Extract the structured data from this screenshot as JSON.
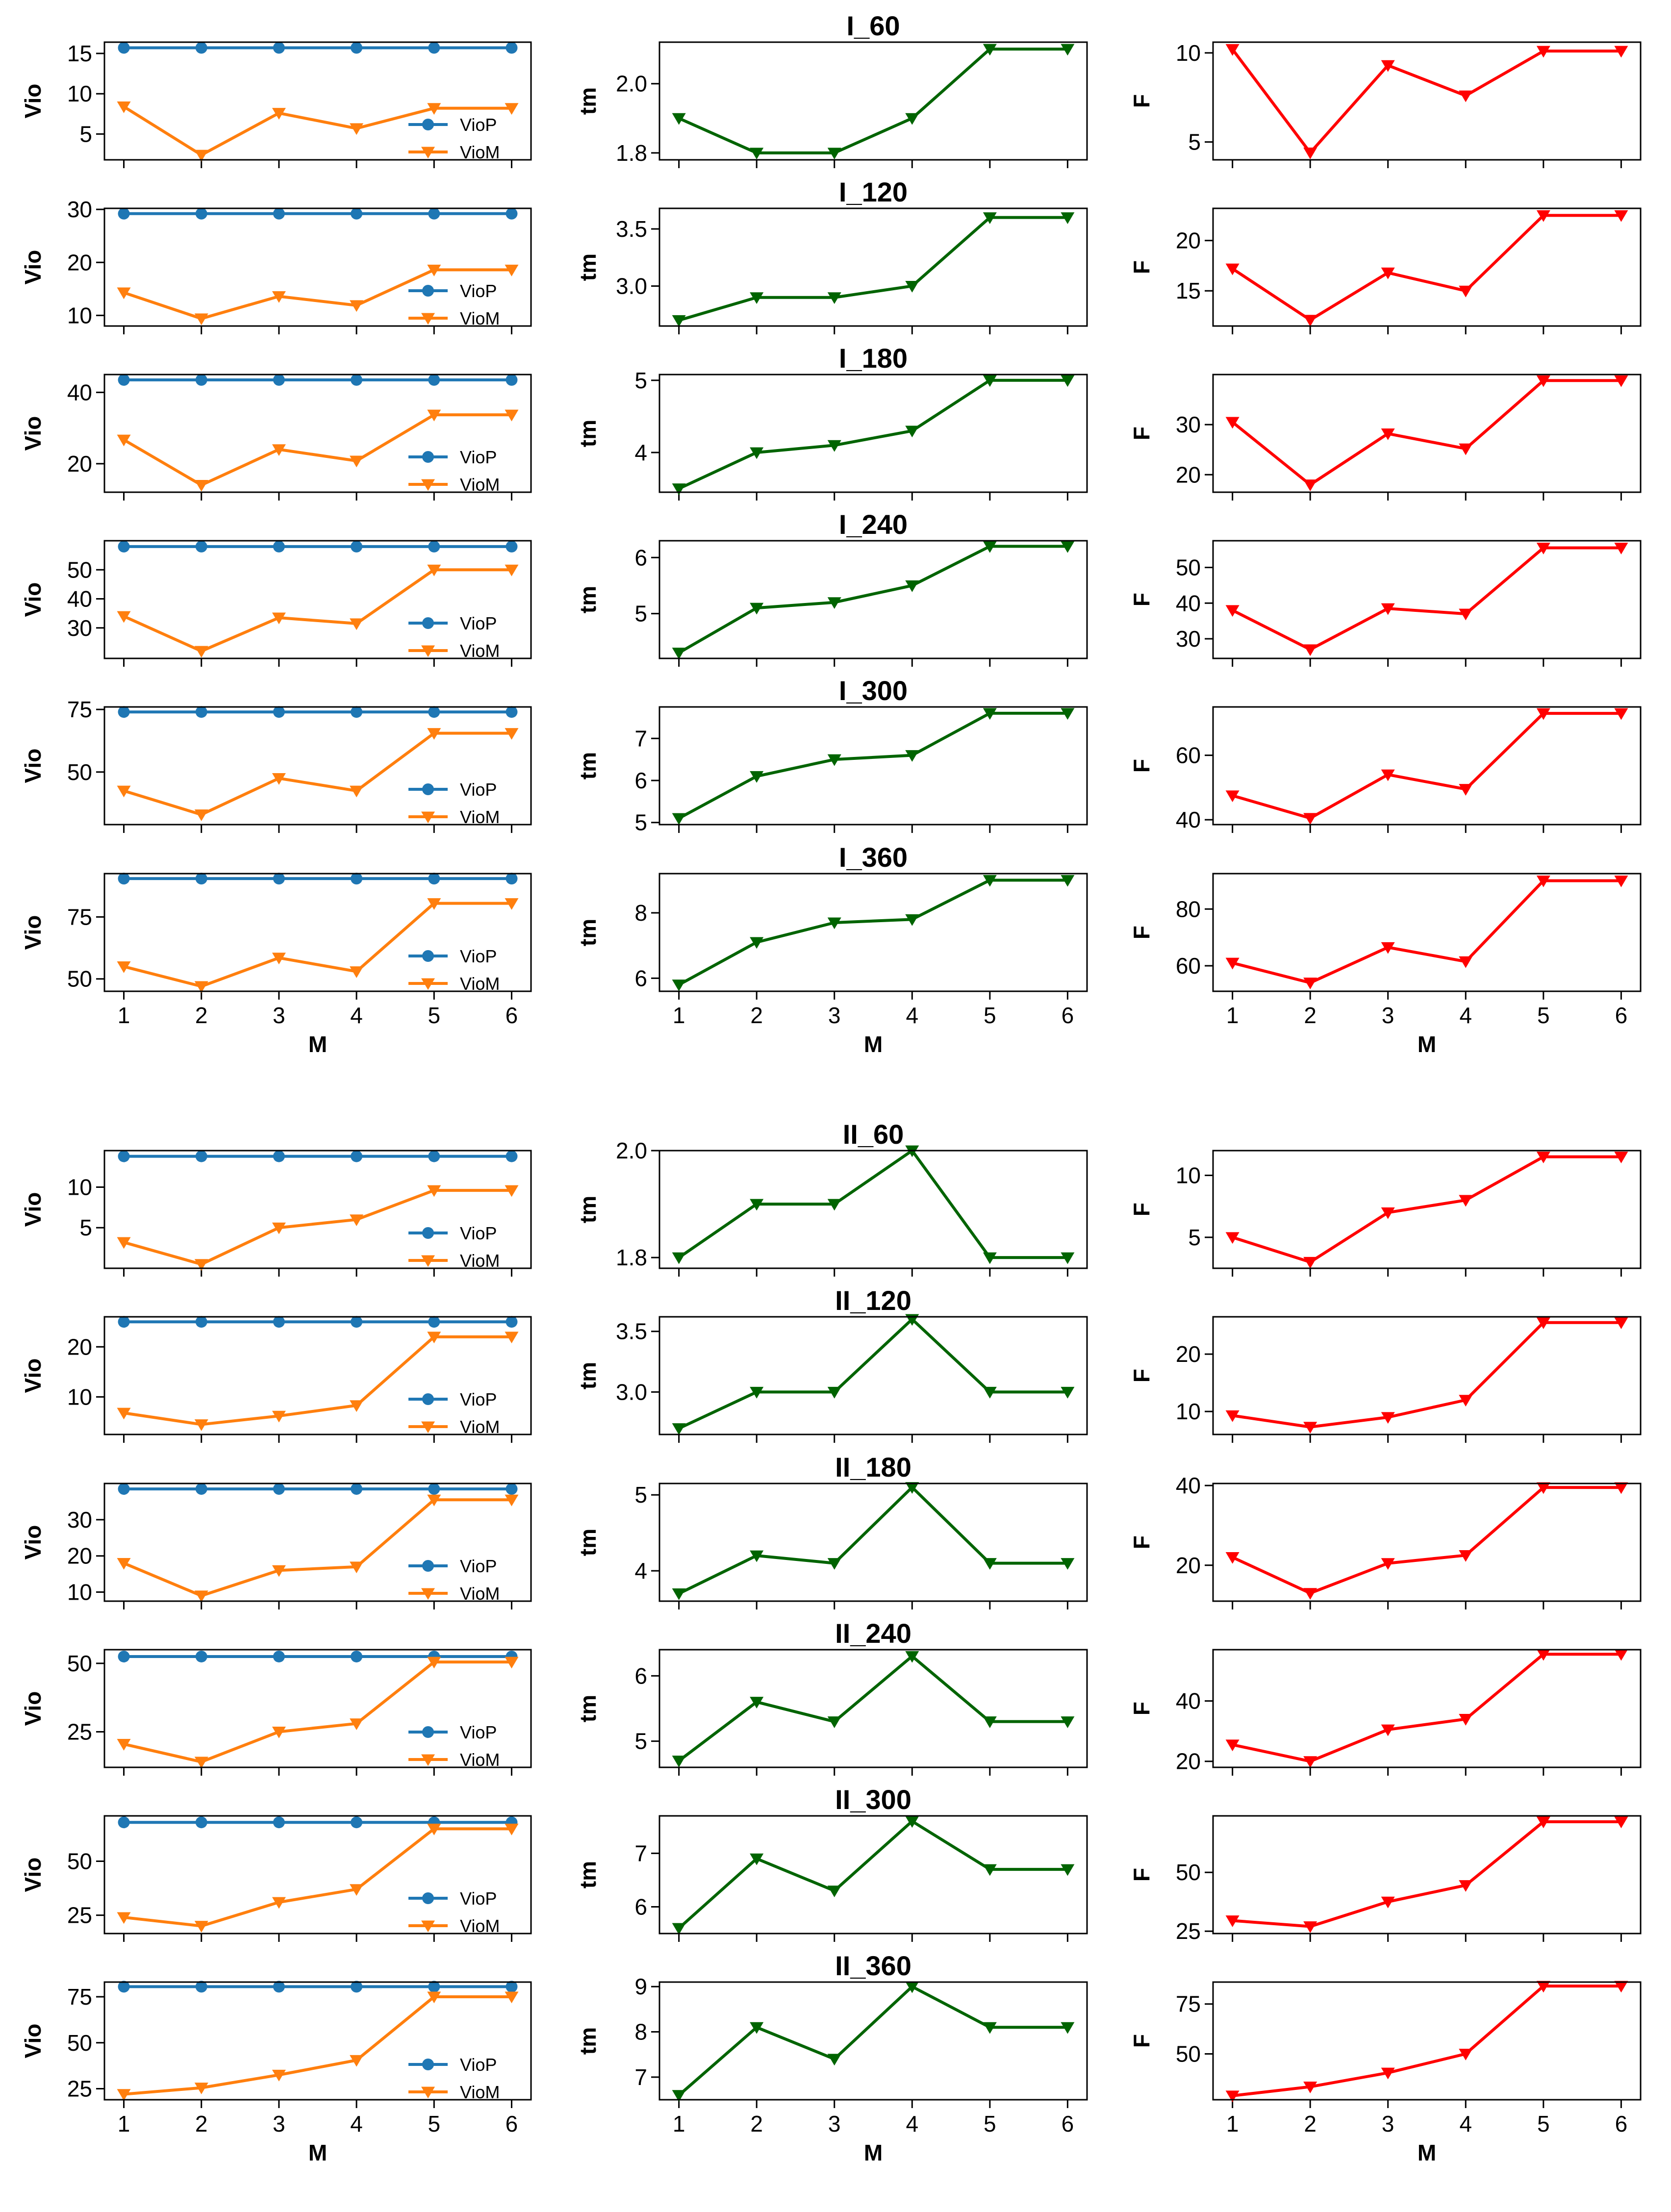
{
  "figure": {
    "x_label": "M",
    "x_ticks": [
      1,
      2,
      3,
      4,
      5,
      6
    ],
    "vio_label": "Vio",
    "tm_label": "tm",
    "f_label": "F",
    "legend": [
      "VioP",
      "VioM"
    ],
    "colors": {
      "viop": "#1f77b4",
      "viom": "#ff7f0e",
      "tm": "#006400",
      "f": "#ff0000"
    }
  },
  "chart_data": [
    {
      "title": "I_60",
      "type": "line",
      "vio": {
        "ylim": [
          1.8,
          16.4
        ],
        "yticks": [
          5,
          10,
          15
        ],
        "series": [
          {
            "name": "VioP",
            "values": [
              15.7,
              15.7,
              15.7,
              15.7,
              15.7,
              15.7
            ]
          },
          {
            "name": "VioM",
            "values": [
              8.4,
              2.4,
              7.6,
              5.7,
              8.2,
              8.2
            ]
          }
        ]
      },
      "tm": {
        "ylim": [
          1.78,
          2.12
        ],
        "yticks": [
          1.8,
          2.0
        ],
        "ytick_labels": [
          "1.8",
          "2.0"
        ],
        "values": [
          1.9,
          1.8,
          1.8,
          1.9,
          2.1,
          2.1
        ]
      },
      "f": {
        "ylim": [
          4.0,
          10.6
        ],
        "yticks": [
          5,
          10
        ],
        "values": [
          10.2,
          4.4,
          9.3,
          7.6,
          10.1,
          10.1
        ]
      }
    },
    {
      "title": "I_120",
      "type": "line",
      "vio": {
        "ylim": [
          8.0,
          30.2
        ],
        "yticks": [
          10,
          20,
          30
        ],
        "series": [
          {
            "name": "VioP",
            "values": [
              29.2,
              29.2,
              29.2,
              29.2,
              29.2,
              29.2
            ]
          },
          {
            "name": "VioM",
            "values": [
              14.3,
              9.4,
              13.6,
              11.9,
              18.6,
              18.6
            ]
          }
        ]
      },
      "tm": {
        "ylim": [
          2.65,
          3.68
        ],
        "yticks": [
          3.0,
          3.5
        ],
        "ytick_labels": [
          "3.0",
          "3.5"
        ],
        "values": [
          2.7,
          2.9,
          2.9,
          3.0,
          3.6,
          3.6
        ]
      },
      "f": {
        "ylim": [
          11.5,
          23.2
        ],
        "yticks": [
          15,
          20
        ],
        "values": [
          17.2,
          12.1,
          16.8,
          15.0,
          22.5,
          22.5
        ]
      }
    },
    {
      "title": "I_180",
      "type": "line",
      "vio": {
        "ylim": [
          12.0,
          45.0
        ],
        "yticks": [
          20,
          40
        ],
        "series": [
          {
            "name": "VioP",
            "values": [
              43.5,
              43.5,
              43.5,
              43.5,
              43.5,
              43.5
            ]
          },
          {
            "name": "VioM",
            "values": [
              26.7,
              14.0,
              24.0,
              20.8,
              33.7,
              33.7
            ]
          }
        ]
      },
      "tm": {
        "ylim": [
          3.45,
          5.08
        ],
        "yticks": [
          4,
          5
        ],
        "ytick_labels": [
          "4",
          "5"
        ],
        "values": [
          3.5,
          4.0,
          4.1,
          4.3,
          5.0,
          5.0
        ]
      },
      "f": {
        "ylim": [
          16.5,
          40.0
        ],
        "yticks": [
          20,
          30
        ],
        "values": [
          30.5,
          18.0,
          28.2,
          25.2,
          38.8,
          38.8
        ]
      }
    },
    {
      "title": "I_240",
      "type": "line",
      "vio": {
        "ylim": [
          19.5,
          60.0
        ],
        "yticks": [
          30,
          40,
          50
        ],
        "series": [
          {
            "name": "VioP",
            "values": [
              58.0,
              58.0,
              58.0,
              58.0,
              58.0,
              58.0
            ]
          },
          {
            "name": "VioM",
            "values": [
              34.0,
              22.0,
              33.5,
              31.5,
              50.0,
              50.0
            ]
          }
        ]
      },
      "tm": {
        "ylim": [
          4.2,
          6.3
        ],
        "yticks": [
          5,
          6
        ],
        "ytick_labels": [
          "5",
          "6"
        ],
        "values": [
          4.3,
          5.1,
          5.2,
          5.5,
          6.2,
          6.2
        ]
      },
      "f": {
        "ylim": [
          24.5,
          57.5
        ],
        "yticks": [
          30,
          40,
          50
        ],
        "values": [
          38.0,
          27.0,
          38.5,
          37.0,
          55.5,
          55.5
        ]
      }
    },
    {
      "title": "I_300",
      "type": "line",
      "vio": {
        "ylim": [
          29.0,
          76.0
        ],
        "yticks": [
          50,
          75
        ],
        "series": [
          {
            "name": "VioP",
            "values": [
              74.0,
              74.0,
              74.0,
              74.0,
              74.0,
              74.0
            ]
          },
          {
            "name": "VioM",
            "values": [
              42.5,
              33.0,
              47.5,
              42.5,
              65.5,
              65.5
            ]
          }
        ]
      },
      "tm": {
        "ylim": [
          4.95,
          7.75
        ],
        "yticks": [
          5,
          6,
          7
        ],
        "ytick_labels": [
          "5",
          "6",
          "7"
        ],
        "values": [
          5.1,
          6.1,
          6.5,
          6.6,
          7.6,
          7.6
        ]
      },
      "f": {
        "ylim": [
          38.5,
          75.0
        ],
        "yticks": [
          40,
          60
        ],
        "values": [
          47.5,
          40.5,
          54.0,
          49.5,
          73.0,
          73.0
        ]
      }
    },
    {
      "title": "I_360",
      "type": "line",
      "vio": {
        "ylim": [
          45.0,
          92.5
        ],
        "yticks": [
          50,
          75
        ],
        "series": [
          {
            "name": "VioP",
            "values": [
              90.5,
              90.5,
              90.5,
              90.5,
              90.5,
              90.5
            ]
          },
          {
            "name": "VioM",
            "values": [
              55.0,
              47.0,
              58.5,
              53.0,
              80.5,
              80.5
            ]
          }
        ]
      },
      "tm": {
        "ylim": [
          5.6,
          9.2
        ],
        "yticks": [
          6,
          8
        ],
        "ytick_labels": [
          "6",
          "8"
        ],
        "values": [
          5.8,
          7.1,
          7.7,
          7.8,
          9.0,
          9.0
        ]
      },
      "f": {
        "ylim": [
          51.0,
          92.5
        ],
        "yticks": [
          60,
          80
        ],
        "values": [
          61.0,
          54.0,
          66.5,
          61.5,
          90.0,
          90.0
        ]
      }
    },
    {
      "title": "II_60",
      "type": "line",
      "vio": {
        "ylim": [
          0.0,
          14.5
        ],
        "yticks": [
          5,
          10
        ],
        "series": [
          {
            "name": "VioP",
            "values": [
              13.8,
              13.8,
              13.8,
              13.8,
              13.8,
              13.8
            ]
          },
          {
            "name": "VioM",
            "values": [
              3.2,
              0.5,
              5.0,
              6.0,
              9.6,
              9.6
            ]
          }
        ]
      },
      "tm": {
        "ylim": [
          1.78,
          2.0
        ],
        "yticks": [
          1.8,
          2.0
        ],
        "ytick_labels": [
          "1.8",
          "2.0"
        ],
        "values": [
          1.8,
          1.9,
          1.9,
          2.0,
          1.8,
          1.8
        ]
      },
      "f": {
        "ylim": [
          2.5,
          12.0
        ],
        "yticks": [
          5,
          10
        ],
        "values": [
          5.0,
          3.0,
          7.0,
          8.0,
          11.5,
          11.5
        ]
      }
    },
    {
      "title": "II_120",
      "type": "line",
      "vio": {
        "ylim": [
          2.5,
          26.0
        ],
        "yticks": [
          10,
          20
        ],
        "series": [
          {
            "name": "VioP",
            "values": [
              25.0,
              25.0,
              25.0,
              25.0,
              25.0,
              25.0
            ]
          },
          {
            "name": "VioM",
            "values": [
              6.8,
              4.5,
              6.2,
              8.3,
              22.0,
              22.0
            ]
          }
        ]
      },
      "tm": {
        "ylim": [
          2.65,
          3.62
        ],
        "yticks": [
          3.0,
          3.5
        ],
        "ytick_labels": [
          "3.0",
          "3.5"
        ],
        "values": [
          2.7,
          3.0,
          3.0,
          3.6,
          3.0,
          3.0
        ]
      },
      "f": {
        "ylim": [
          6.0,
          26.5
        ],
        "yticks": [
          10,
          20
        ],
        "values": [
          9.3,
          7.3,
          9.0,
          12.0,
          25.5,
          25.5
        ]
      }
    },
    {
      "title": "II_180",
      "type": "line",
      "vio": {
        "ylim": [
          7.5,
          40.0
        ],
        "yticks": [
          10,
          20,
          30
        ],
        "series": [
          {
            "name": "VioP",
            "values": [
              38.5,
              38.5,
              38.5,
              38.5,
              38.5,
              38.5
            ]
          },
          {
            "name": "VioM",
            "values": [
              18.0,
              9.0,
              16.0,
              17.0,
              35.5,
              35.5
            ]
          }
        ]
      },
      "tm": {
        "ylim": [
          3.6,
          5.15
        ],
        "yticks": [
          4,
          5
        ],
        "ytick_labels": [
          "4",
          "5"
        ],
        "values": [
          3.7,
          4.2,
          4.1,
          5.1,
          4.1,
          4.1
        ]
      },
      "f": {
        "ylim": [
          11.0,
          40.5
        ],
        "yticks": [
          20,
          40
        ],
        "values": [
          22.0,
          13.0,
          20.5,
          22.5,
          39.5,
          39.5
        ]
      }
    },
    {
      "title": "II_240",
      "type": "line",
      "vio": {
        "ylim": [
          12.0,
          55.0
        ],
        "yticks": [
          25,
          50
        ],
        "series": [
          {
            "name": "VioP",
            "values": [
              52.5,
              52.5,
              52.5,
              52.5,
              52.5,
              52.5
            ]
          },
          {
            "name": "VioM",
            "values": [
              20.5,
              14.0,
              25.0,
              28.0,
              50.5,
              50.5
            ]
          }
        ]
      },
      "tm": {
        "ylim": [
          4.6,
          6.4
        ],
        "yticks": [
          5,
          6
        ],
        "ytick_labels": [
          "5",
          "6"
        ],
        "values": [
          4.7,
          5.6,
          5.3,
          6.3,
          5.3,
          5.3
        ]
      },
      "f": {
        "ylim": [
          18.0,
          57.0
        ],
        "yticks": [
          20,
          40
        ],
        "values": [
          25.5,
          20.0,
          30.5,
          34.0,
          55.5,
          55.5
        ]
      }
    },
    {
      "title": "II_300",
      "type": "line",
      "vio": {
        "ylim": [
          16.5,
          71.0
        ],
        "yticks": [
          25,
          50
        ],
        "series": [
          {
            "name": "VioP",
            "values": [
              68.0,
              68.0,
              68.0,
              68.0,
              68.0,
              68.0
            ]
          },
          {
            "name": "VioM",
            "values": [
              24.0,
              20.0,
              31.0,
              37.0,
              65.0,
              65.0
            ]
          }
        ]
      },
      "tm": {
        "ylim": [
          5.5,
          7.7
        ],
        "yticks": [
          6,
          7
        ],
        "ytick_labels": [
          "6",
          "7"
        ],
        "values": [
          5.6,
          6.9,
          6.3,
          7.6,
          6.7,
          6.7
        ]
      },
      "f": {
        "ylim": [
          24.0,
          74.0
        ],
        "yticks": [
          25,
          50
        ],
        "values": [
          29.5,
          27.0,
          37.5,
          44.5,
          71.5,
          71.5
        ]
      }
    },
    {
      "title": "II_360",
      "type": "line",
      "vio": {
        "ylim": [
          19.0,
          83.0
        ],
        "yticks": [
          25,
          50,
          75
        ],
        "series": [
          {
            "name": "VioP",
            "values": [
              80.5,
              80.5,
              80.5,
              80.5,
              80.5,
              80.5
            ]
          },
          {
            "name": "VioM",
            "values": [
              22.0,
              25.5,
              32.5,
              40.5,
              75.0,
              75.0
            ]
          }
        ]
      },
      "tm": {
        "ylim": [
          6.5,
          9.1
        ],
        "yticks": [
          7,
          8,
          9
        ],
        "ytick_labels": [
          "7",
          "8",
          "9"
        ],
        "values": [
          6.6,
          8.1,
          7.4,
          9.0,
          8.1,
          8.1
        ]
      },
      "f": {
        "ylim": [
          27.0,
          86.0
        ],
        "yticks": [
          50,
          75
        ],
        "values": [
          29.0,
          33.5,
          40.5,
          50.0,
          84.0,
          84.0
        ]
      }
    }
  ]
}
